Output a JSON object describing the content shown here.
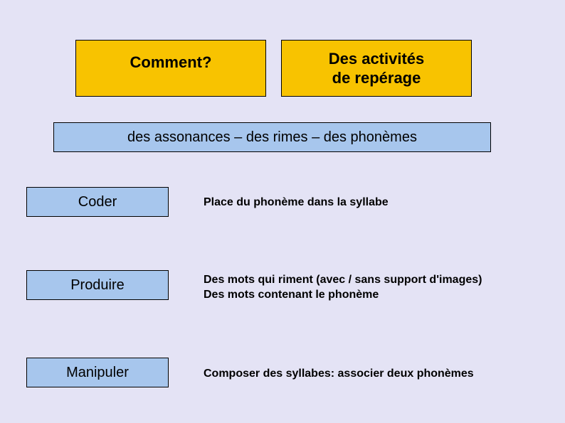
{
  "colors": {
    "bg": "#e4e3f5",
    "orange": "#f8c300",
    "blue": "#a7c6ed",
    "border": "#000000",
    "text": "#000000"
  },
  "top": {
    "left": "Comment?",
    "right_line1": "Des activités",
    "right_line2": "de repérage"
  },
  "banner": "des assonances – des rimes – des phonèmes",
  "rows": {
    "r1": {
      "label": "Coder",
      "desc": "Place du phonème dans la syllabe"
    },
    "r2": {
      "label": "Produire",
      "desc_l1": "Des mots qui riment (avec / sans support d'images)",
      "desc_l2": "Des mots contenant le phonème"
    },
    "r3": {
      "label": "Manipuler",
      "desc": "Composer des syllabes: associer deux phonèmes"
    }
  }
}
